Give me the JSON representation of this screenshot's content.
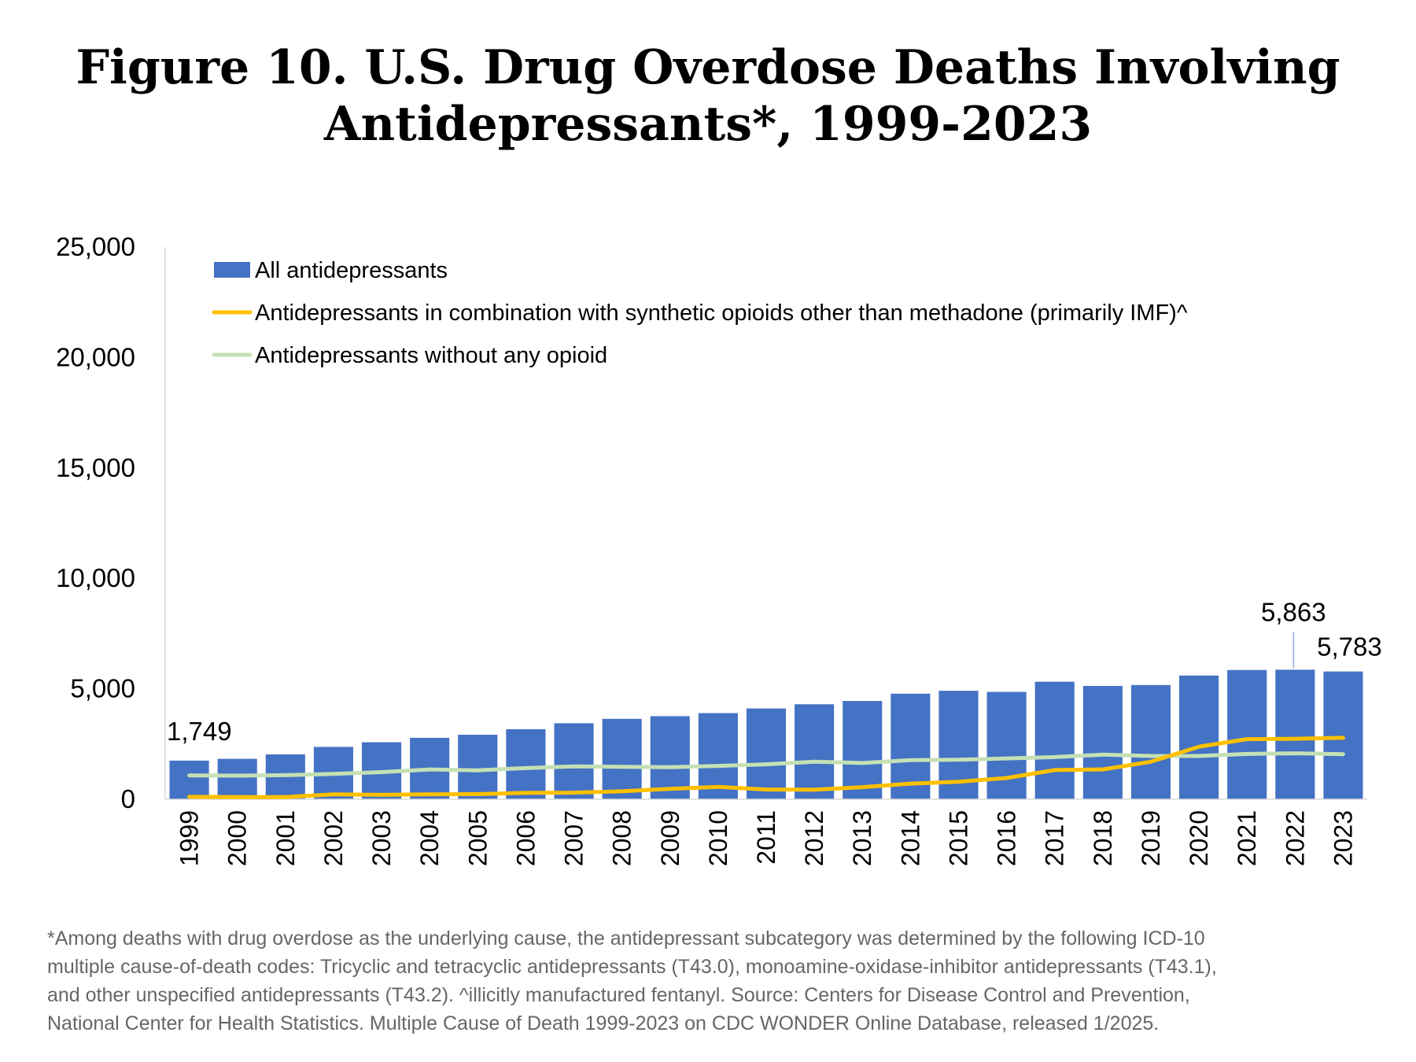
{
  "title": {
    "line1": "Figure 10. U.S. Drug Overdose Deaths Involving",
    "line2": "Antidepressants*, 1999-2023"
  },
  "footnote": {
    "lines": [
      "*Among deaths with drug overdose as the underlying cause, the antidepressant subcategory was determined by the following ICD-10",
      "multiple cause-of-death codes: Tricyclic and tetracyclic antidepressants (T43.0), monoamine-oxidase-inhibitor antidepressants (T43.1),",
      "and other unspecified antidepressants (T43.2). ^illicitly manufactured fentanyl. Source: Centers for Disease Control and Prevention,",
      "National Center for Health Statistics. Multiple Cause of Death 1999-2023 on CDC WONDER Online Database, released 1/2025."
    ]
  },
  "chart_data": {
    "type": "bar",
    "title": "Figure 10. U.S. Drug Overdose Deaths Involving Antidepressants*, 1999-2023",
    "xlabel": "",
    "ylabel": "",
    "ylim": [
      0,
      25000
    ],
    "yticks": [
      "0",
      "5,000",
      "10,000",
      "15,000",
      "20,000",
      "25,000"
    ],
    "ytick_values": [
      0,
      5000,
      10000,
      15000,
      20000,
      25000
    ],
    "grid": false,
    "legend_position": "top-left",
    "categories": [
      "1999",
      "2000",
      "2001",
      "2002",
      "2003",
      "2004",
      "2005",
      "2006",
      "2007",
      "2008",
      "2009",
      "2010",
      "2011",
      "2012",
      "2013",
      "2014",
      "2015",
      "2016",
      "2017",
      "2018",
      "2019",
      "2020",
      "2021",
      "2022",
      "2023"
    ],
    "series": [
      {
        "name": "All antidepressants",
        "kind": "bar",
        "color": "#4472C4",
        "values": [
          1749,
          1830,
          2030,
          2370,
          2580,
          2780,
          2920,
          3170,
          3440,
          3640,
          3760,
          3900,
          4110,
          4300,
          4450,
          4780,
          4910,
          4860,
          5320,
          5130,
          5170,
          5600,
          5850,
          5863,
          5783
        ]
      },
      {
        "name": "Antidepressants in combination with synthetic opioids other than methadone (primarily IMF)^",
        "kind": "line",
        "color": "#FFC000",
        "values": [
          110,
          100,
          100,
          220,
          200,
          220,
          230,
          290,
          300,
          360,
          470,
          560,
          440,
          430,
          550,
          710,
          790,
          960,
          1320,
          1350,
          1700,
          2380,
          2720,
          2740,
          2780
        ]
      },
      {
        "name": "Antidepressants without any opioid",
        "kind": "line",
        "color": "#C5E0B4",
        "values": [
          1080,
          1070,
          1090,
          1150,
          1230,
          1350,
          1310,
          1410,
          1490,
          1470,
          1450,
          1510,
          1580,
          1700,
          1640,
          1770,
          1790,
          1850,
          1910,
          2020,
          1960,
          1960,
          2050,
          2080,
          2040
        ]
      }
    ],
    "annotations": [
      {
        "text": "1,749",
        "category": "1999"
      },
      {
        "text": "5,863",
        "category": "2022"
      },
      {
        "text": "5,783",
        "category": "2023"
      }
    ]
  }
}
